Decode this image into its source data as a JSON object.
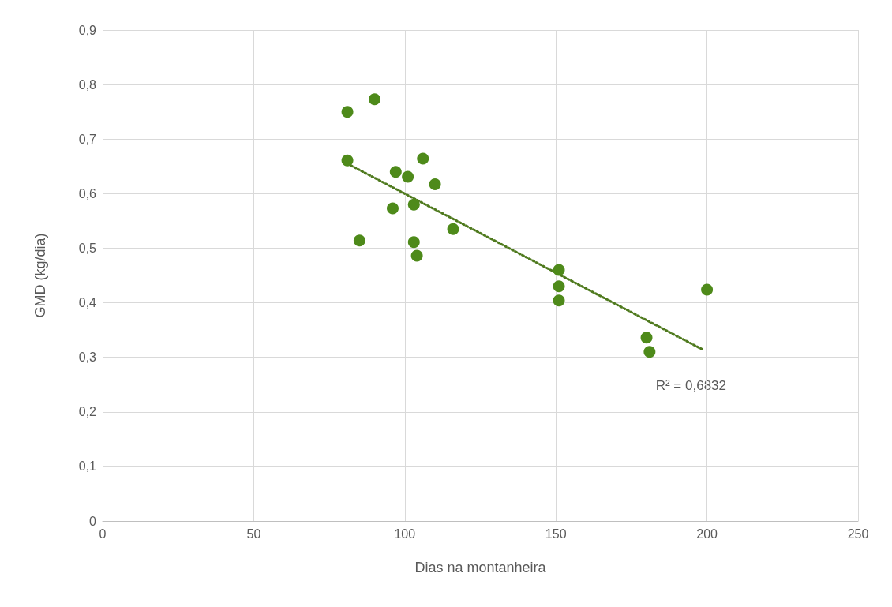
{
  "chart_data": {
    "type": "scatter",
    "xlabel": "Dias na montanheira",
    "ylabel": "GMD (kg/dia)",
    "xlim": [
      0,
      250
    ],
    "xticks": [
      0,
      50,
      100,
      150,
      200,
      250
    ],
    "ylim": [
      0,
      0.9
    ],
    "yticks": [
      0,
      {
        "value": 0.1,
        "label": "0,1"
      },
      {
        "value": 0.2,
        "label": "0,2"
      },
      {
        "value": 0.3,
        "label": "0,3"
      },
      {
        "value": 0.4,
        "label": "0,4"
      },
      {
        "value": 0.5,
        "label": "0,5"
      },
      {
        "value": 0.6,
        "label": "0,6"
      },
      {
        "value": 0.7,
        "label": "0,7"
      },
      {
        "value": 0.8,
        "label": "0,8"
      },
      {
        "value": 0.9,
        "label": "0,9"
      }
    ],
    "grid": true,
    "marker": "circle",
    "series": [
      {
        "color": "#4e8a1a",
        "x": [
          81,
          90,
          81,
          85,
          97,
          96,
          101,
          106,
          103,
          110,
          103,
          104,
          116,
          151,
          151,
          151,
          200,
          180,
          181
        ],
        "values": [
          0.75,
          0.773,
          0.661,
          0.514,
          0.64,
          0.573,
          0.631,
          0.664,
          0.58,
          0.617,
          0.511,
          0.486,
          0.535,
          0.46,
          0.43,
          0.404,
          0.424,
          0.336,
          0.31
        ]
      },
      {
        "type": "line",
        "color": "#4f7a1e",
        "line_style": "dotted",
        "marker": "none",
        "x": [
          81,
          199
        ],
        "values": [
          0.655,
          0.313
        ]
      }
    ],
    "annotations": [
      "R² = 0,6832"
    ]
  }
}
